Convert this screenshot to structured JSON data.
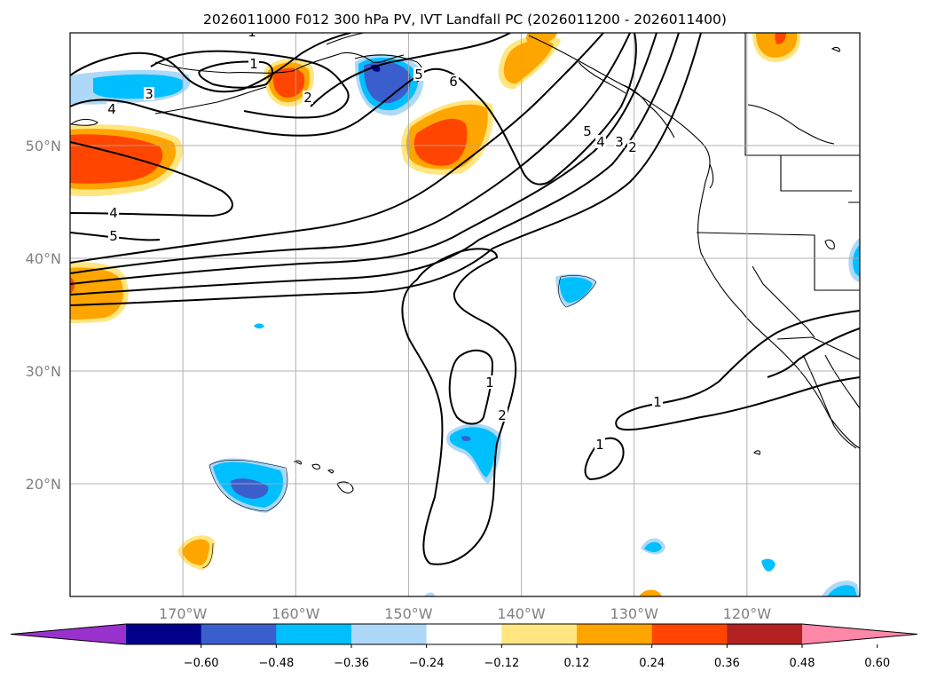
{
  "chart_data": {
    "type": "map",
    "title": "2026011000 F012 300 hPa PV, IVT Landfall PC (2026011200 - 2026011400)",
    "lat_range": [
      10,
      60
    ],
    "lon_range": [
      -180,
      -110
    ],
    "latitude_labels": [
      "50°N",
      "40°N",
      "30°N",
      "20°N"
    ],
    "longitude_labels": [
      "170°W",
      "160°W",
      "150°W",
      "140°W",
      "130°W",
      "120°W"
    ],
    "contour_variable": "300 hPa PV",
    "contour_labels": [
      "1",
      "2",
      "3",
      "4",
      "5",
      "6",
      "1",
      "2",
      "1",
      "1",
      "4",
      "5",
      "2",
      "3",
      "4",
      "5",
      "1"
    ],
    "shaded_variable": "IVT Landfall PC",
    "colorbar": {
      "ticks": [
        "−0.60",
        "−0.48",
        "−0.36",
        "−0.24",
        "−0.12",
        "0.12",
        "0.24",
        "0.36",
        "0.48",
        "0.60"
      ],
      "colors": [
        "#9932cc",
        "#00008b",
        "#3a5fcd",
        "#00bfff",
        "#add8f8",
        "#ffffff",
        "#ffe680",
        "#ffa500",
        "#ff4500",
        "#b22222",
        "#ff88a8"
      ],
      "extend": "both"
    }
  },
  "colors": {
    "frame": "#000000",
    "grid": "#a9a9a9",
    "axis_label": "#808080"
  }
}
